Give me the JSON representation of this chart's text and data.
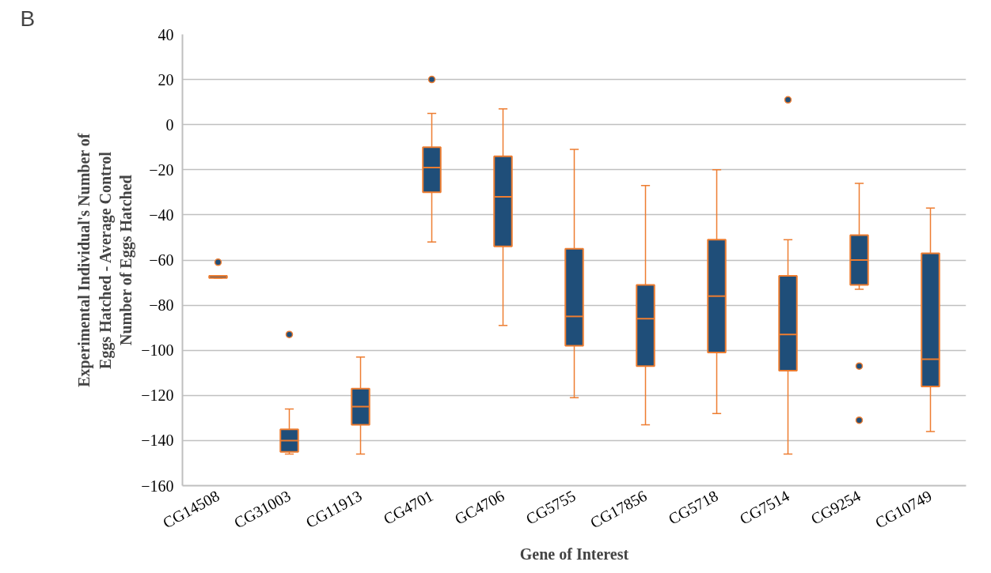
{
  "chart_data": {
    "type": "box",
    "xlabel": "Gene of Interest",
    "ylabel": "Experimental Individual's Number of Eggs Hatched - Average Control Number of Eggs Hatched",
    "annotations": [
      "B"
    ],
    "categories": [
      "CG14508",
      "CG31003",
      "CG11913",
      "CG4701",
      "GC4706",
      "CG5755",
      "CG17856",
      "CG5718",
      "CG7514",
      "CG9254",
      "CG10749"
    ],
    "series": [
      {
        "color": "#1f4e79",
        "boxes": [
          {
            "low": -68,
            "q1": -68,
            "median": -67,
            "q3": -67,
            "high": -67,
            "outliers": [
              -61
            ]
          },
          {
            "low": -146,
            "q1": -145,
            "median": -140,
            "q3": -135,
            "high": -126,
            "outliers": [
              -93
            ]
          },
          {
            "low": -146,
            "q1": -133,
            "median": -125,
            "q3": -117,
            "high": -103
          },
          {
            "low": -52,
            "q1": -30,
            "median": -19,
            "q3": -10,
            "high": 5,
            "outliers": [
              20
            ]
          },
          {
            "low": -89,
            "q1": -54,
            "median": -32,
            "q3": -14,
            "high": 7
          },
          {
            "low": -121,
            "q1": -98,
            "median": -85,
            "q3": -55,
            "high": -11
          },
          {
            "low": -133,
            "q1": -107,
            "median": -86,
            "q3": -71,
            "high": -27
          },
          {
            "low": -128,
            "q1": -101,
            "median": -76,
            "q3": -51,
            "high": -20
          },
          {
            "low": -146,
            "q1": -109,
            "median": -93,
            "q3": -67,
            "high": -51,
            "outliers": [
              11
            ]
          },
          {
            "low": -73,
            "q1": -71,
            "median": -60,
            "q3": -49,
            "high": -26,
            "outliers": [
              -107,
              -131
            ]
          },
          {
            "low": -136,
            "q1": -116,
            "median": -104,
            "q3": -57,
            "high": -37
          }
        ]
      }
    ],
    "ylim": [
      -160,
      40
    ],
    "yticks": [
      -160,
      -140,
      -120,
      -100,
      -80,
      -60,
      -40,
      -20,
      0,
      20,
      40
    ],
    "grid": "y",
    "marker": "circle"
  }
}
